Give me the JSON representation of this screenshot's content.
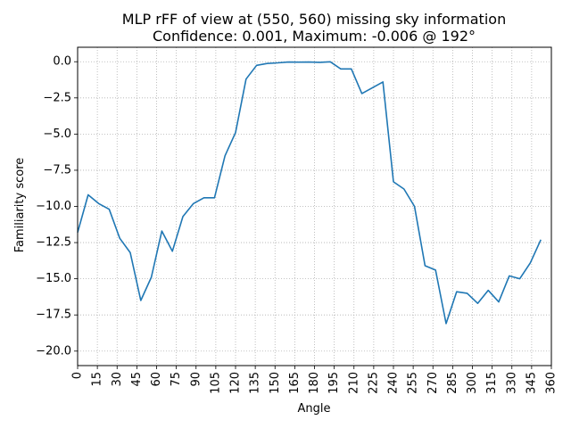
{
  "chart_data": {
    "type": "line",
    "title": "MLP rFF of view at (550, 560) missing sky information",
    "subtitle": "Confidence: 0.001, Maximum: -0.006 @ 192°",
    "xlabel": "Angle",
    "ylabel": "Familiarity score",
    "xlim": [
      0,
      360
    ],
    "ylim": [
      -21,
      1
    ],
    "x_ticks": [
      "0",
      "15",
      "30",
      "45",
      "60",
      "75",
      "90",
      "105",
      "120",
      "135",
      "150",
      "165",
      "180",
      "195",
      "210",
      "225",
      "240",
      "255",
      "270",
      "285",
      "300",
      "315",
      "330",
      "345",
      "360"
    ],
    "x_tick_values": [
      0,
      15,
      30,
      45,
      60,
      75,
      90,
      105,
      120,
      135,
      150,
      165,
      180,
      195,
      210,
      225,
      240,
      255,
      270,
      285,
      300,
      315,
      330,
      345,
      360
    ],
    "y_ticks": [
      "0.0",
      "−2.5",
      "−5.0",
      "−7.5",
      "−10.0",
      "−12.5",
      "−15.0",
      "−17.5",
      "−20.0"
    ],
    "y_tick_values": [
      0,
      -2.5,
      -5,
      -7.5,
      -10,
      -12.5,
      -15,
      -17.5,
      -20
    ],
    "grid": true,
    "line_color": "#1f77b4",
    "series": [
      {
        "x": [
          0,
          8,
          16,
          24,
          32,
          40,
          48,
          56,
          64,
          72,
          80,
          88,
          96,
          104,
          112,
          120,
          128,
          136,
          144,
          152,
          160,
          168,
          176,
          184,
          192,
          200,
          208,
          216,
          224,
          232,
          240,
          248,
          256,
          264,
          272,
          280,
          288,
          296,
          304,
          312,
          320,
          328,
          336,
          344,
          352
        ],
        "values": [
          -11.8,
          -9.2,
          -9.8,
          -10.2,
          -12.2,
          -13.2,
          -16.5,
          -14.9,
          -11.7,
          -13.1,
          -10.7,
          -9.8,
          -9.4,
          -9.4,
          -6.5,
          -4.9,
          -1.2,
          -0.25,
          -0.12,
          -0.08,
          -0.02,
          -0.03,
          -0.02,
          -0.04,
          -0.006,
          -0.5,
          -0.5,
          -2.2,
          -1.8,
          -1.4,
          -8.3,
          -8.8,
          -10.0,
          -14.1,
          -14.4,
          -18.1,
          -15.9,
          -16.0,
          -16.7,
          -15.8,
          -16.6,
          -14.8,
          -15.0,
          -13.9,
          -12.3
        ]
      }
    ]
  }
}
